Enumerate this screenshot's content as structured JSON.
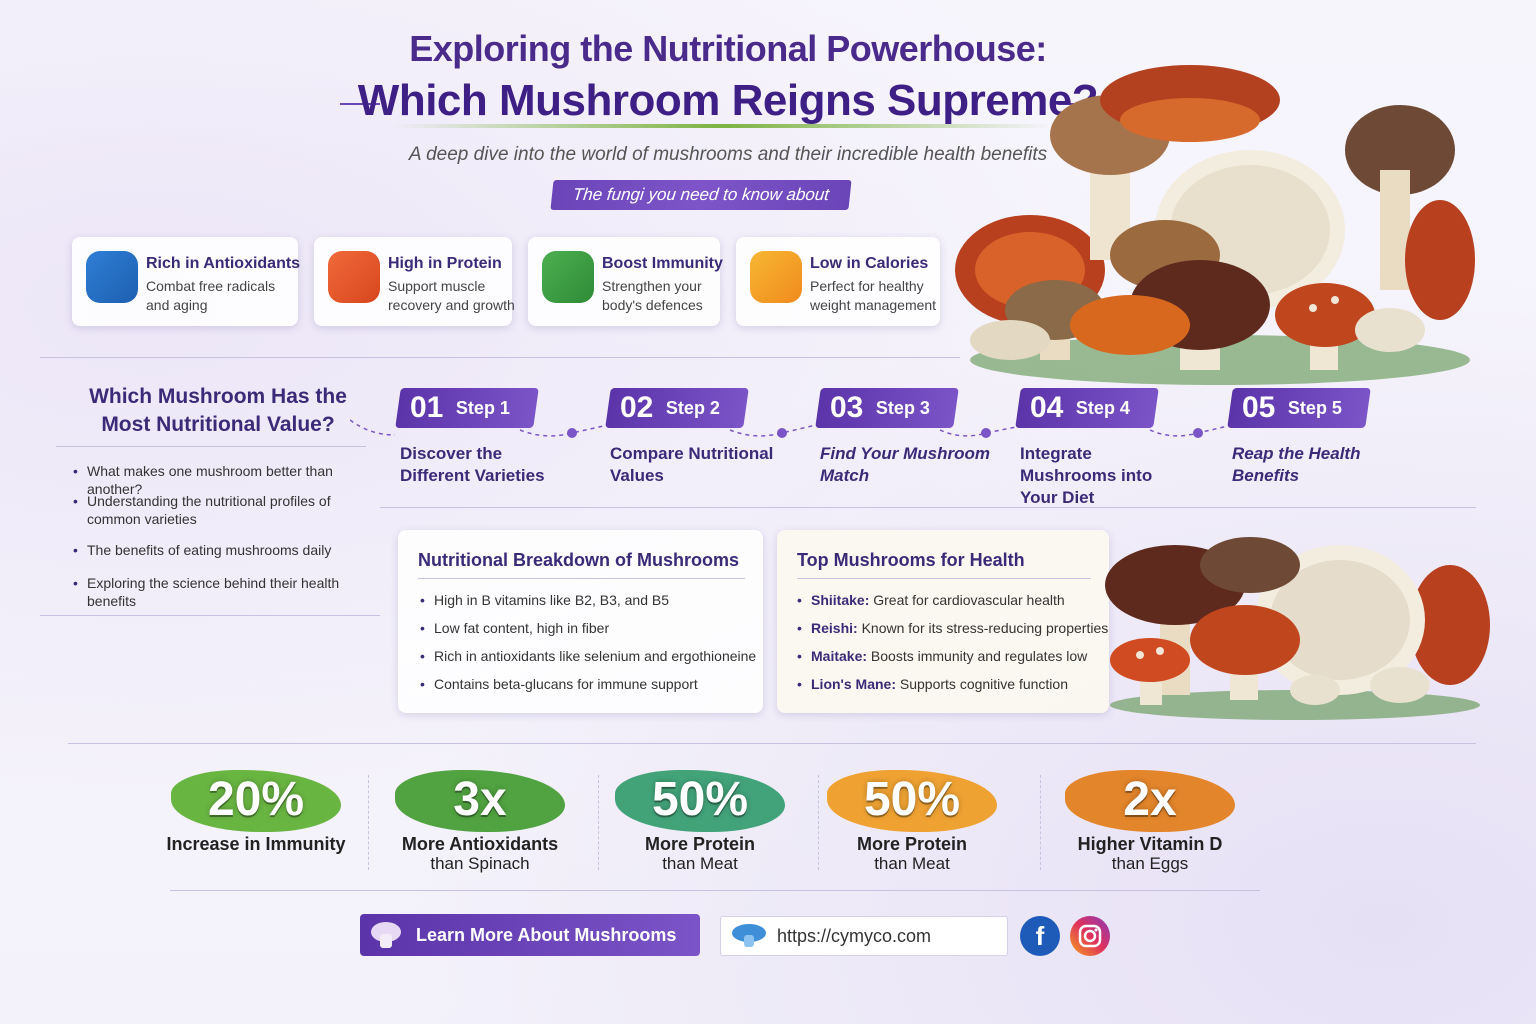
{
  "header": {
    "title_line1": "Exploring the Nutritional Powerhouse:",
    "title_line2": "Which Mushroom Reigns Supreme?",
    "subtitle": "A deep dive into the world of mushrooms and their incredible health benefits",
    "tag": "The fungi you need to know about"
  },
  "features": [
    {
      "title": "Rich in Antioxidants",
      "text": "Combat free radicals and aging"
    },
    {
      "title": "High in Protein",
      "text": "Support muscle recovery and growth"
    },
    {
      "title": "Boost Immunity",
      "text": "Strengthen your body's defences"
    },
    {
      "title": "Low in Calories",
      "text": "Perfect for healthy weight management"
    }
  ],
  "intro": {
    "title": "Which Mushroom Has the Most Nutritional Value?",
    "bullets": [
      "What makes one mushroom better than another?",
      "Understanding the nutritional profiles of common varieties",
      "The benefits of eating mushrooms daily",
      "Exploring the science behind their health benefits"
    ]
  },
  "steps": [
    {
      "number": "01",
      "label": "Step 1",
      "text": "Discover the Different Varieties"
    },
    {
      "number": "02",
      "label": "Step 2",
      "text": "Compare Nutritional Values"
    },
    {
      "number": "03",
      "label": "Step 3",
      "text": "Find Your Mushroom Match"
    },
    {
      "number": "04",
      "label": "Step 4",
      "text": "Integrate Mushrooms into Your Diet"
    },
    {
      "number": "05",
      "label": "Step 5",
      "text": "Reap the Health Benefits"
    }
  ],
  "breakdown": {
    "title": "Nutritional Breakdown of Mushrooms",
    "items": [
      "High in B vitamins like B2, B3, and B5",
      "Low fat content, high in fiber",
      "Rich in antioxidants like selenium and ergothioneine",
      "Contains beta-glucans for immune support"
    ]
  },
  "top_mushrooms": {
    "title": "Top Mushrooms for Health",
    "items": [
      {
        "name": "Shiitake:",
        "text": "Great for cardiovascular health"
      },
      {
        "name": "Reishi:",
        "text": "Known for its stress-reducing properties"
      },
      {
        "name": "Maitake:",
        "text": "Boosts immunity and regulates low"
      },
      {
        "name": "Lion's Mane:",
        "text": "Supports cognitive function"
      }
    ]
  },
  "stats": [
    {
      "value": "20%",
      "lines": [
        "Increase in Immunity"
      ]
    },
    {
      "value": "3x",
      "lines": [
        "More Antioxidants",
        "than Spinach"
      ]
    },
    {
      "value": "50%",
      "lines": [
        "More Protein",
        "than Meat"
      ]
    },
    {
      "value": "50%",
      "lines": [
        "More Protein",
        "than Meat"
      ]
    },
    {
      "value": "2x",
      "lines": [
        "Higher Vitamin D",
        "than Eggs"
      ]
    }
  ],
  "footer": {
    "button": "Learn More About Mushrooms",
    "url": "https://cymyco.com"
  }
}
